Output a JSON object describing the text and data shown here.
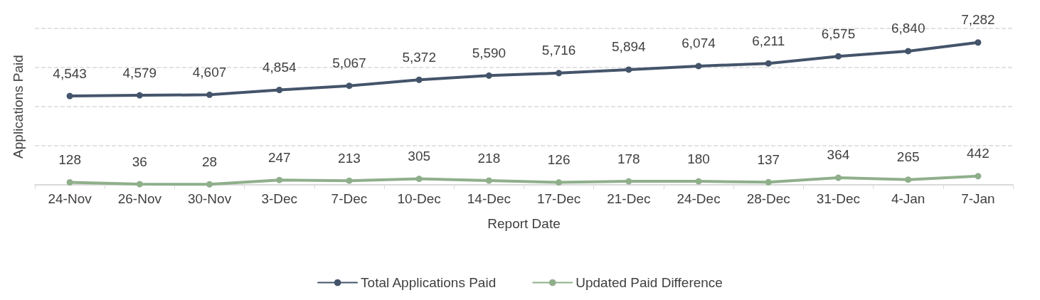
{
  "chart_data": {
    "type": "line",
    "xlabel": "Report Date",
    "ylabel": "Applications Paid",
    "categories": [
      "24-Nov",
      "26-Nov",
      "30-Nov",
      "3-Dec",
      "7-Dec",
      "10-Dec",
      "14-Dec",
      "17-Dec",
      "21-Dec",
      "24-Dec",
      "28-Dec",
      "31-Dec",
      "4-Jan",
      "7-Jan"
    ],
    "series": [
      {
        "name": "Total Applications Paid",
        "color": "#44546a",
        "values": [
          4543,
          4579,
          4607,
          4854,
          5067,
          5372,
          5590,
          5716,
          5894,
          6074,
          6211,
          6575,
          6840,
          7282
        ],
        "value_labels": [
          "4,543",
          "4,579",
          "4,607",
          "4,854",
          "5,067",
          "5,372",
          "5,590",
          "5,716",
          "5,894",
          "6,074",
          "6,211",
          "6,575",
          "6,840",
          "7,282"
        ]
      },
      {
        "name": "Updated Paid Difference",
        "color": "#8faf8b",
        "values": [
          128,
          36,
          28,
          247,
          213,
          305,
          218,
          126,
          178,
          180,
          137,
          364,
          265,
          442
        ],
        "value_labels": [
          "128",
          "36",
          "28",
          "247",
          "213",
          "305",
          "218",
          "126",
          "178",
          "180",
          "137",
          "364",
          "265",
          "442"
        ]
      }
    ],
    "ylim": [
      0,
      8000
    ],
    "yticks": [
      {
        "value": 0,
        "label": null
      },
      {
        "value": 2000,
        "label": null
      },
      {
        "value": 4000,
        "label": null
      },
      {
        "value": 6000,
        "label": null
      },
      {
        "value": 8000,
        "label": null
      }
    ],
    "tick_labels": "x",
    "grid": "y",
    "legend": "bottom",
    "marker": "circle",
    "line_style": "solid"
  }
}
